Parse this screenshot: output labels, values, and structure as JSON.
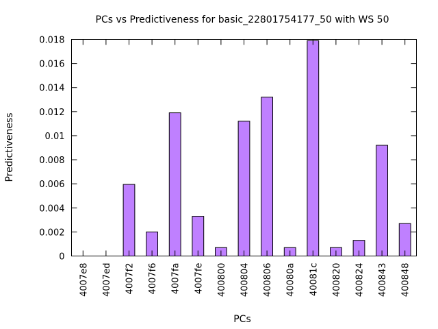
{
  "chart_data": {
    "type": "bar",
    "title": "PCs vs Predictiveness for basic_22801754177_50 with WS 50",
    "xlabel": "PCs",
    "ylabel": "Predictiveness",
    "ylim": [
      0,
      0.018
    ],
    "yticks": [
      "0",
      "0.002",
      "0.004",
      "0.006",
      "0.008",
      "0.01",
      "0.012",
      "0.014",
      "0.016",
      "0.018"
    ],
    "categories": [
      "4007e8",
      "4007ed",
      "4007f2",
      "4007f6",
      "4007fa",
      "4007fe",
      "400800",
      "400804",
      "400806",
      "40080a",
      "40081c",
      "400820",
      "400824",
      "400843",
      "400848"
    ],
    "values": [
      0,
      0,
      0.00595,
      0.002,
      0.0119,
      0.0033,
      0.0007,
      0.0112,
      0.0132,
      0.0007,
      0.0179,
      0.0007,
      0.0013,
      0.0092,
      0.0027
    ],
    "bar_color": "#bf80ff",
    "grid": false,
    "legend": "none"
  }
}
